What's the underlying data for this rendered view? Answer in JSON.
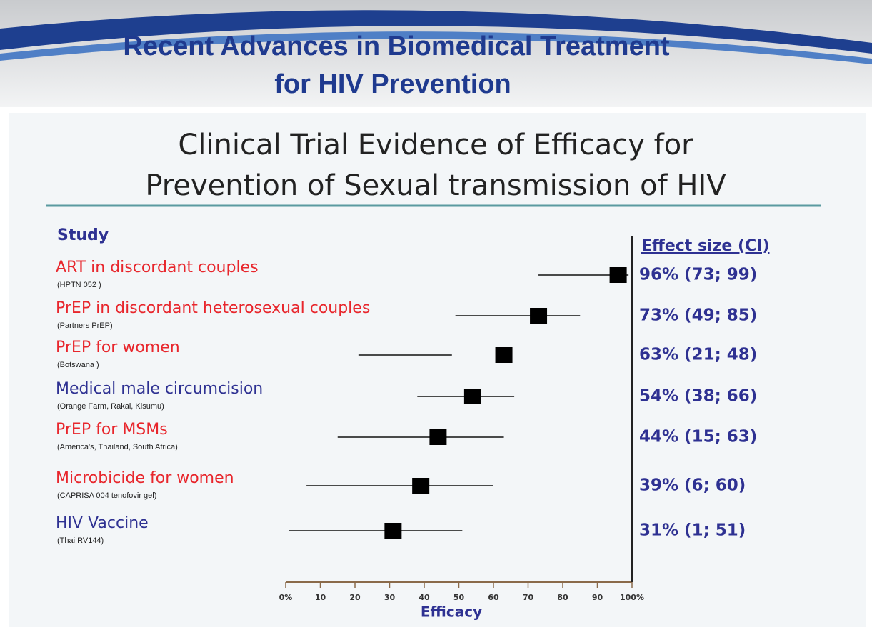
{
  "header": {
    "title_lines": [
      "Recent Advances in Biomedical Treatment",
      "for HIV Prevention"
    ]
  },
  "chart_data": {
    "type": "forest",
    "title_lines": [
      "Clinical Trial Evidence of Efficacy for",
      "Prevention of Sexual transmission of HIV"
    ],
    "study_header": "Study",
    "effect_header": "Effect size (CI)",
    "categories": [
      "ART in discordant couples",
      "PrEP in discordant heterosexual couples",
      "PrEP for women",
      "Medical male circumcision",
      "PrEP for MSMs",
      "Microbicide for women",
      "HIV Vaccine"
    ],
    "subtitles": [
      "(HPTN 052 )",
      "(Partners PrEP)",
      "(Botswana )",
      "(Orange Farm, Rakai, Kisumu)",
      "(America's, Thailand, South Africa)",
      "(CAPRISA 004 tenofovir gel)",
      "(Thai RV144)"
    ],
    "values": [
      96,
      73,
      63,
      54,
      44,
      39,
      31
    ],
    "ci_low": [
      73,
      49,
      21,
      38,
      15,
      6,
      1
    ],
    "ci_high": [
      99,
      85,
      48,
      66,
      63,
      60,
      51
    ],
    "value_labels": [
      "96% (73; 99)",
      "73% (49; 85)",
      "63% (21; 48)",
      "54% (38; 66)",
      "44% (15; 63)",
      "39% (6; 60)",
      "31% (1; 51)"
    ],
    "label_colors": [
      "#e8262c",
      "#e8262c",
      "#e8262c",
      "#2e3192",
      "#e8262c",
      "#e8262c",
      "#2e3192"
    ],
    "marker_color": "#000000",
    "xlim": [
      0,
      100
    ],
    "xticks": [
      {
        "value": 0,
        "label": "0%"
      },
      10,
      20,
      30,
      40,
      50,
      60,
      70,
      80,
      90,
      {
        "value": 100,
        "label": "100%"
      }
    ],
    "xlabel": "Efficacy"
  }
}
